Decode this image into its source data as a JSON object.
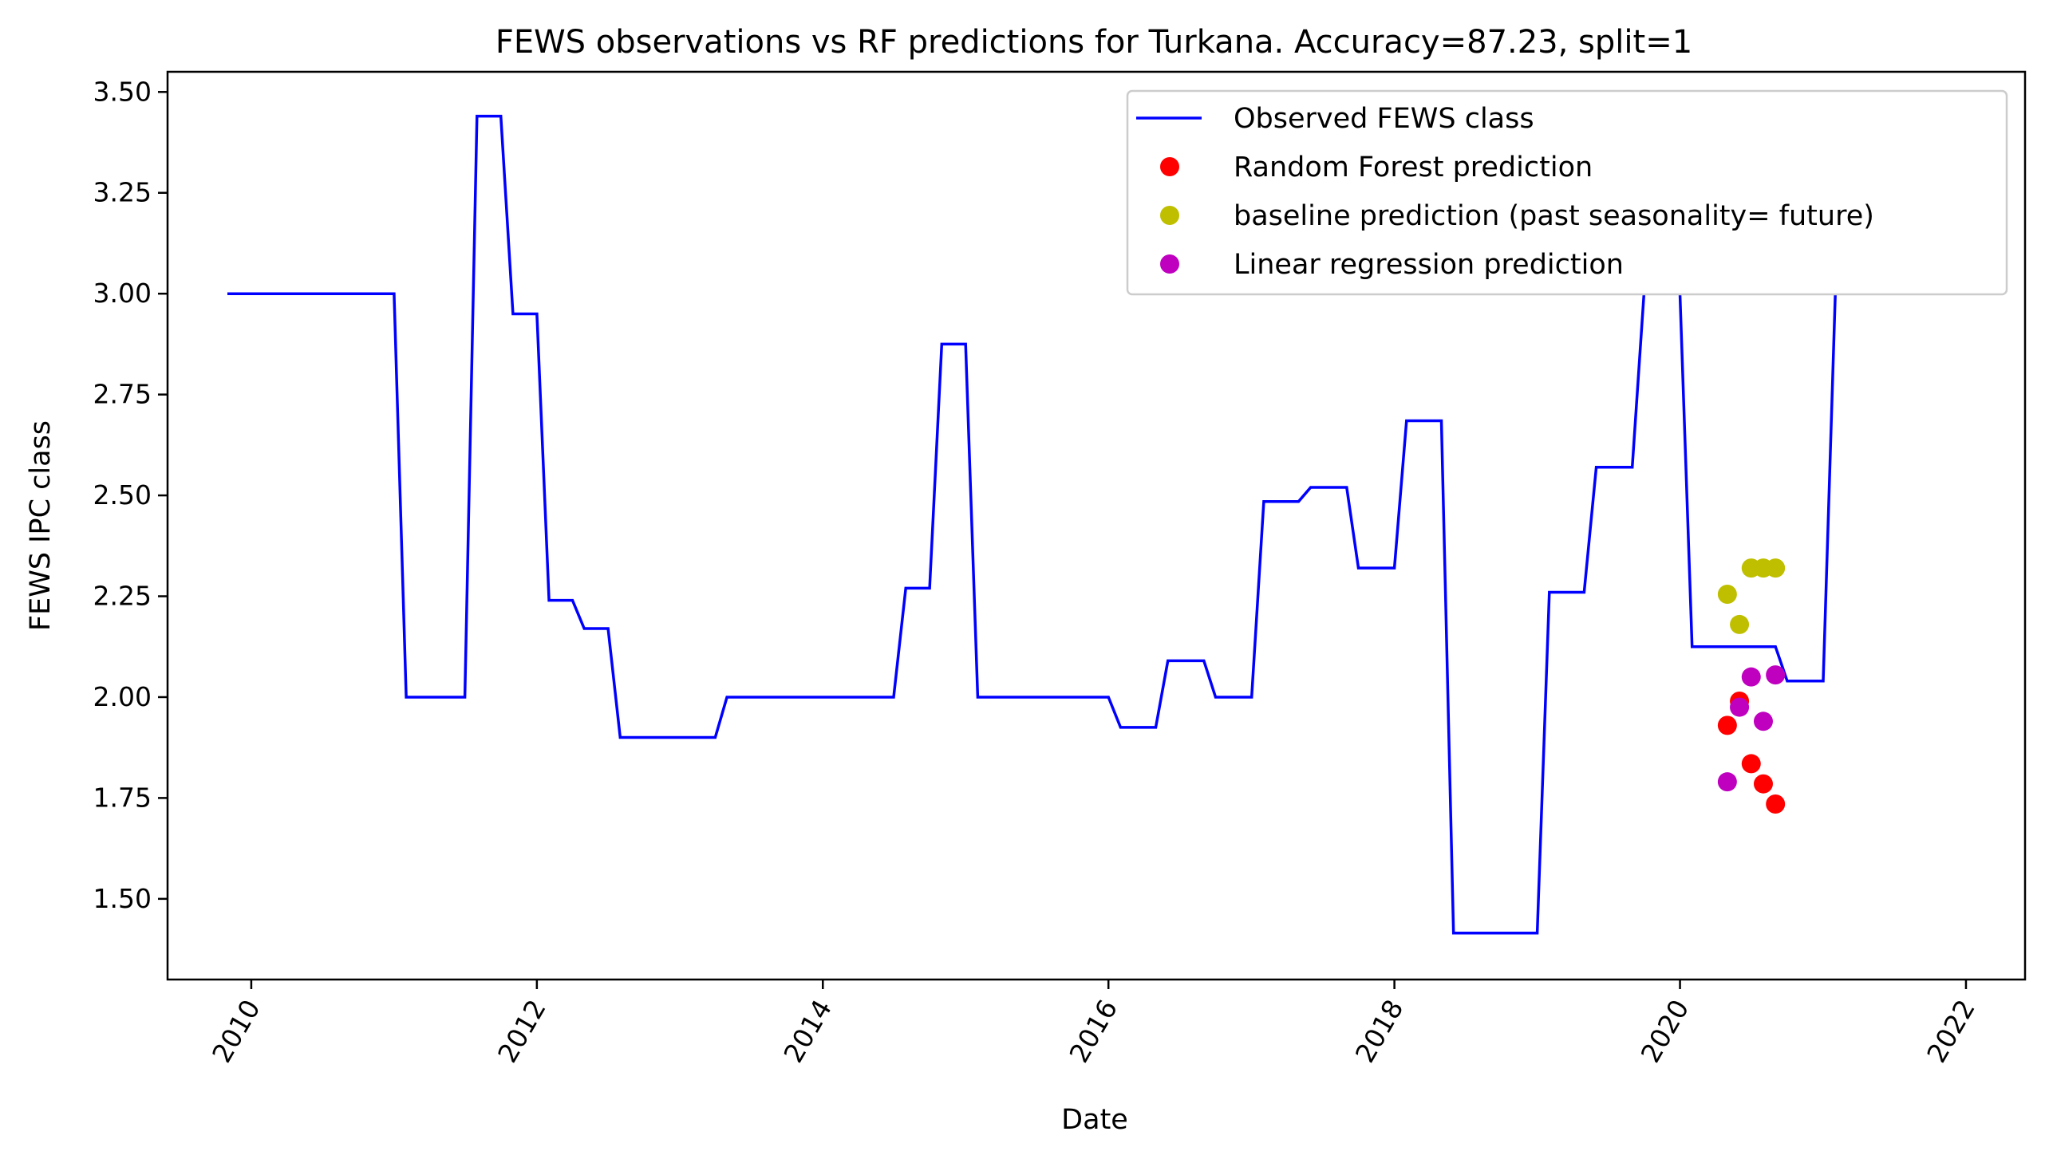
{
  "chart_data": {
    "type": "line",
    "title": "FEWS observations vs RF predictions for Turkana. Accuracy=87.23, split=1",
    "xlabel": "Date",
    "ylabel": "FEWS IPC class",
    "xlim": [
      "2009-06-01",
      "2022-06-01"
    ],
    "ylim": [
      1.3,
      3.55
    ],
    "x_ticks": [
      "2010",
      "2012",
      "2014",
      "2016",
      "2018",
      "2020",
      "2022"
    ],
    "y_ticks": [
      "1.50",
      "1.75",
      "2.00",
      "2.25",
      "2.50",
      "2.75",
      "3.00",
      "3.25",
      "3.50"
    ],
    "grid": false,
    "legend_position": "top-right",
    "series": [
      {
        "name": "Observed FEWS class",
        "kind": "line",
        "color": "#0000ff",
        "points": [
          [
            "2009-11-01",
            3.0
          ],
          [
            "2011-01-01",
            3.0
          ],
          [
            "2011-02-01",
            2.0
          ],
          [
            "2011-07-01",
            2.0
          ],
          [
            "2011-08-01",
            3.44
          ],
          [
            "2011-10-01",
            3.44
          ],
          [
            "2011-11-01",
            2.95
          ],
          [
            "2012-01-01",
            2.95
          ],
          [
            "2012-02-01",
            2.24
          ],
          [
            "2012-04-01",
            2.24
          ],
          [
            "2012-05-01",
            2.17
          ],
          [
            "2012-07-01",
            2.17
          ],
          [
            "2012-08-01",
            1.9
          ],
          [
            "2013-04-01",
            1.9
          ],
          [
            "2013-05-01",
            2.0
          ],
          [
            "2014-07-01",
            2.0
          ],
          [
            "2014-08-01",
            2.27
          ],
          [
            "2014-10-01",
            2.27
          ],
          [
            "2014-11-01",
            2.875
          ],
          [
            "2015-01-01",
            2.875
          ],
          [
            "2015-02-01",
            2.0
          ],
          [
            "2016-01-01",
            2.0
          ],
          [
            "2016-02-01",
            1.925
          ],
          [
            "2016-05-01",
            1.925
          ],
          [
            "2016-06-01",
            2.09
          ],
          [
            "2016-09-01",
            2.09
          ],
          [
            "2016-10-01",
            2.0
          ],
          [
            "2017-01-01",
            2.0
          ],
          [
            "2017-02-01",
            2.485
          ],
          [
            "2017-05-01",
            2.485
          ],
          [
            "2017-06-01",
            2.52
          ],
          [
            "2017-09-01",
            2.52
          ],
          [
            "2017-10-01",
            2.32
          ],
          [
            "2018-01-01",
            2.32
          ],
          [
            "2018-02-01",
            2.685
          ],
          [
            "2018-05-01",
            2.685
          ],
          [
            "2018-06-01",
            1.415
          ],
          [
            "2019-01-01",
            1.415
          ],
          [
            "2019-02-01",
            2.26
          ],
          [
            "2019-05-01",
            2.26
          ],
          [
            "2019-06-01",
            2.57
          ],
          [
            "2019-09-01",
            2.57
          ],
          [
            "2019-10-01",
            3.0
          ],
          [
            "2020-01-01",
            3.0
          ],
          [
            "2020-02-01",
            2.125
          ],
          [
            "2020-09-01",
            2.125
          ],
          [
            "2020-10-01",
            2.04
          ],
          [
            "2021-01-01",
            2.04
          ],
          [
            "2021-02-01",
            3.0
          ],
          [
            "2021-12-01",
            3.0
          ]
        ]
      },
      {
        "name": "Random Forest prediction",
        "kind": "scatter",
        "color": "#ff0000",
        "points": [
          [
            "2020-05-01",
            1.93
          ],
          [
            "2020-06-01",
            1.99
          ],
          [
            "2020-07-01",
            1.835
          ],
          [
            "2020-08-01",
            1.785
          ],
          [
            "2020-09-01",
            1.735
          ]
        ]
      },
      {
        "name": "baseline prediction (past seasonality= future)",
        "kind": "scatter",
        "color": "#bfbf00",
        "points": [
          [
            "2020-05-01",
            2.255
          ],
          [
            "2020-06-01",
            2.18
          ],
          [
            "2020-07-01",
            2.32
          ],
          [
            "2020-08-01",
            2.32
          ],
          [
            "2020-09-01",
            2.32
          ]
        ]
      },
      {
        "name": "Linear regression prediction",
        "kind": "scatter",
        "color": "#bf00bf",
        "points": [
          [
            "2020-05-01",
            1.79
          ],
          [
            "2020-06-01",
            1.975
          ],
          [
            "2020-07-01",
            2.05
          ],
          [
            "2020-08-01",
            1.94
          ],
          [
            "2020-09-01",
            2.055
          ]
        ]
      }
    ]
  }
}
